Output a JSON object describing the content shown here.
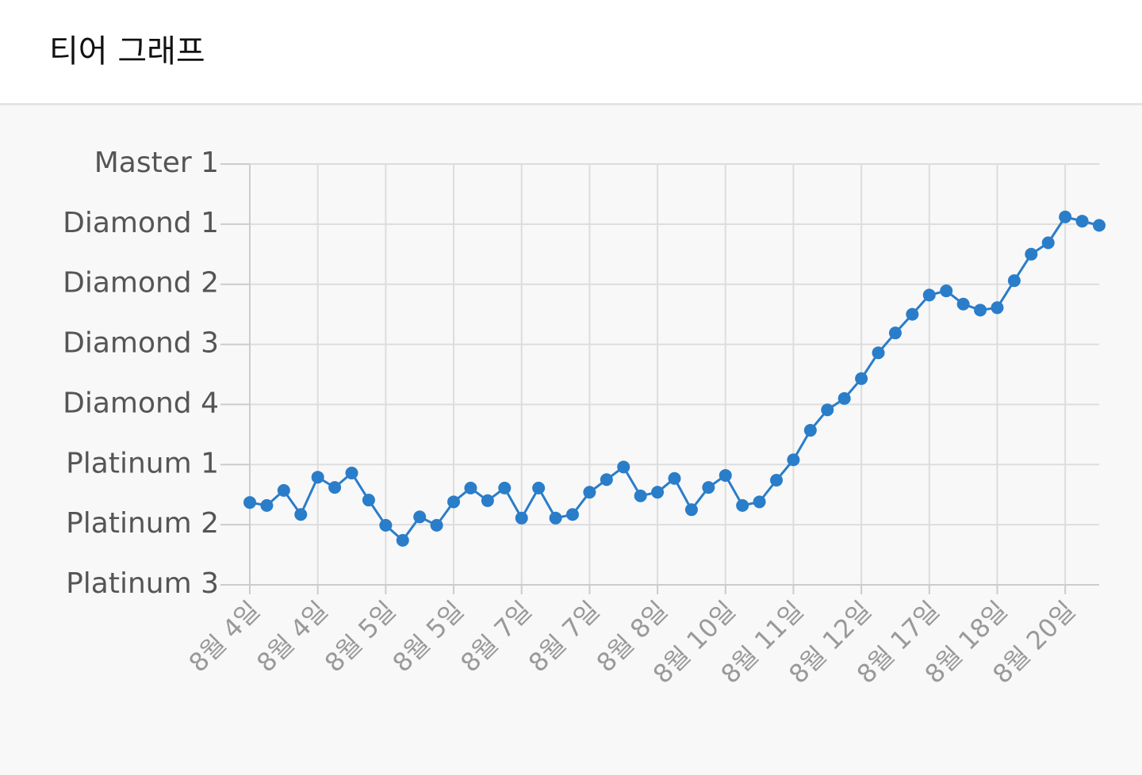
{
  "header": {
    "title": "티어 그래프"
  },
  "chart_data": {
    "type": "line",
    "categories": [
      "8월 4일",
      null,
      null,
      null,
      "8월 4일",
      null,
      null,
      null,
      "8월 5일",
      null,
      null,
      null,
      "8월 5일",
      null,
      null,
      null,
      "8월 7일",
      null,
      null,
      null,
      "8월 7일",
      null,
      null,
      null,
      "8월 8일",
      null,
      null,
      null,
      "8월 10일",
      null,
      null,
      null,
      "8월 11일",
      null,
      null,
      null,
      "8월 12일",
      null,
      null,
      null,
      "8월 17일",
      null,
      null,
      null,
      "8월 18일",
      null,
      null,
      null,
      "8월 20일",
      null,
      null
    ],
    "series": [
      {
        "color": "#2a7dc9",
        "values": [
          1.37,
          1.32,
          1.57,
          1.17,
          1.79,
          1.62,
          1.86,
          1.41,
          0.99,
          0.74,
          1.13,
          0.99,
          1.38,
          1.61,
          1.4,
          1.61,
          1.11,
          1.61,
          1.11,
          1.17,
          1.54,
          1.75,
          1.96,
          1.48,
          1.54,
          1.77,
          1.25,
          1.62,
          1.82,
          1.32,
          1.38,
          1.74,
          2.08,
          2.57,
          2.91,
          3.1,
          3.43,
          3.86,
          4.19,
          4.5,
          4.82,
          4.89,
          4.67,
          4.57,
          4.61,
          5.06,
          5.5,
          5.69,
          6.12,
          6.05,
          5.98
        ]
      }
    ],
    "ylim": [
      0,
      7
    ],
    "yticks": [
      {
        "value": 0,
        "label": "Platinum 3"
      },
      {
        "value": 1,
        "label": "Platinum 2"
      },
      {
        "value": 2,
        "label": "Platinum 1"
      },
      {
        "value": 3,
        "label": "Diamond 4"
      },
      {
        "value": 4,
        "label": "Diamond 3"
      },
      {
        "value": 5,
        "label": "Diamond 2"
      },
      {
        "value": 6,
        "label": "Diamond 1"
      },
      {
        "value": 7,
        "label": "Master 1"
      }
    ],
    "grid": true
  }
}
